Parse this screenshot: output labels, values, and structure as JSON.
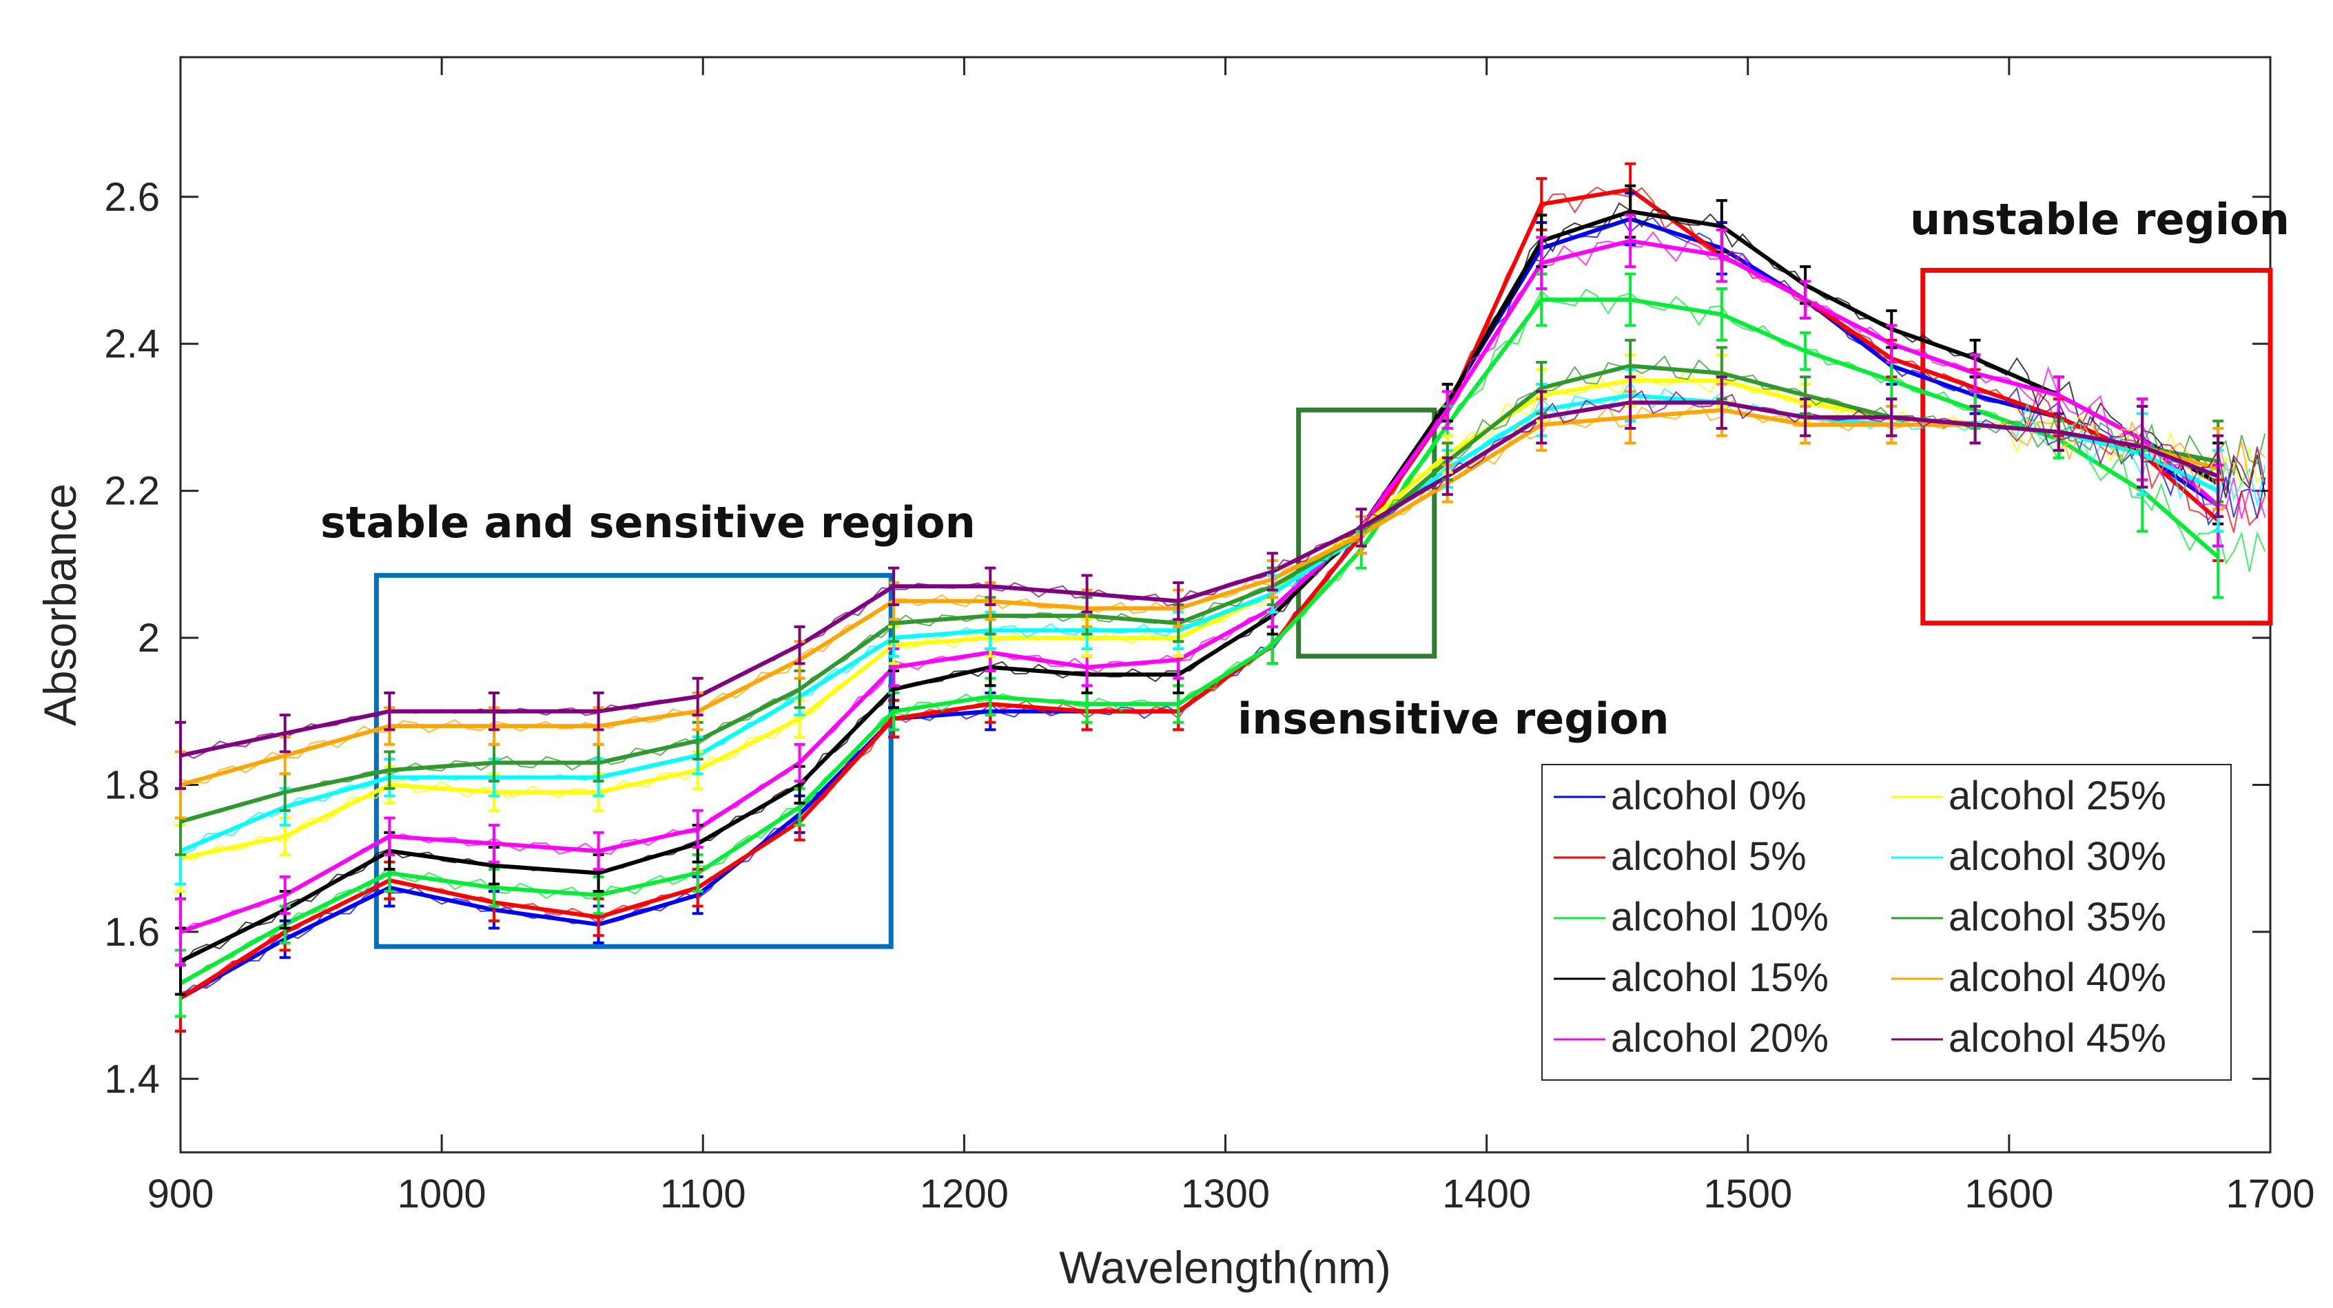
{
  "chart_data": {
    "type": "line",
    "title": "",
    "xlabel": "Wavelength(nm)",
    "ylabel": "Absorbance",
    "xlim": [
      900,
      1700
    ],
    "ylim": [
      1.3,
      2.79
    ],
    "xticks": [
      900,
      1000,
      1100,
      1200,
      1300,
      1400,
      1500,
      1600,
      1700
    ],
    "xtick_labels": [
      "900",
      "1000",
      "1100",
      "1200",
      "1300",
      "1400",
      "1500",
      "1600",
      "1700"
    ],
    "yticks": [
      1.4,
      1.6,
      1.8,
      2.0,
      2.2,
      2.4,
      2.6
    ],
    "ytick_labels": [
      "1.4",
      "1.6",
      "1.8",
      "2",
      "2.2",
      "2.4",
      "2.6"
    ],
    "grid": false,
    "legend_position": "bottom-right",
    "x": [
      900,
      940,
      980,
      1020,
      1060,
      1098,
      1137,
      1173,
      1210,
      1247,
      1282,
      1318,
      1352,
      1385,
      1421,
      1455,
      1490,
      1522,
      1555,
      1587,
      1619,
      1651,
      1680
    ],
    "series": [
      {
        "name": "alcohol 0%",
        "color": "#0000ff",
        "values": [
          1.51,
          1.59,
          1.66,
          1.63,
          1.61,
          1.65,
          1.76,
          1.89,
          1.9,
          1.9,
          1.9,
          1.99,
          2.14,
          2.32,
          2.53,
          2.57,
          2.53,
          2.46,
          2.37,
          2.33,
          2.3,
          2.25,
          2.18
        ]
      },
      {
        "name": "alcohol 5%",
        "color": "#ff0000",
        "values": [
          1.51,
          1.6,
          1.67,
          1.64,
          1.62,
          1.66,
          1.75,
          1.89,
          1.91,
          1.9,
          1.9,
          1.99,
          2.14,
          2.31,
          2.59,
          2.61,
          2.52,
          2.46,
          2.38,
          2.34,
          2.3,
          2.25,
          2.16
        ]
      },
      {
        "name": "alcohol 10%",
        "color": "#00ee33",
        "values": [
          1.53,
          1.61,
          1.68,
          1.66,
          1.65,
          1.68,
          1.77,
          1.9,
          1.92,
          1.91,
          1.91,
          1.99,
          2.12,
          2.29,
          2.46,
          2.46,
          2.44,
          2.39,
          2.35,
          2.31,
          2.27,
          2.2,
          2.11
        ]
      },
      {
        "name": "alcohol 15%",
        "color": "#000000",
        "values": [
          1.56,
          1.63,
          1.71,
          1.69,
          1.68,
          1.72,
          1.8,
          1.93,
          1.96,
          1.95,
          1.95,
          2.03,
          2.15,
          2.32,
          2.54,
          2.58,
          2.56,
          2.48,
          2.42,
          2.38,
          2.33,
          2.27,
          2.21
        ]
      },
      {
        "name": "alcohol 20%",
        "color": "#ff00ff",
        "values": [
          1.6,
          1.65,
          1.73,
          1.72,
          1.71,
          1.74,
          1.83,
          1.96,
          1.98,
          1.96,
          1.97,
          2.04,
          2.15,
          2.31,
          2.51,
          2.54,
          2.52,
          2.46,
          2.4,
          2.36,
          2.33,
          2.27,
          2.18
        ]
      },
      {
        "name": "alcohol 25%",
        "color": "#ffff00",
        "values": [
          1.7,
          1.73,
          1.8,
          1.79,
          1.79,
          1.82,
          1.89,
          1.99,
          2.0,
          2.0,
          2.0,
          2.06,
          2.15,
          2.25,
          2.33,
          2.35,
          2.35,
          2.32,
          2.3,
          2.29,
          2.28,
          2.26,
          2.22
        ]
      },
      {
        "name": "alcohol 30%",
        "color": "#00ffff",
        "values": [
          1.71,
          1.77,
          1.81,
          1.81,
          1.81,
          1.84,
          1.92,
          2.0,
          2.01,
          2.01,
          2.01,
          2.06,
          2.14,
          2.23,
          2.31,
          2.33,
          2.32,
          2.3,
          2.29,
          2.29,
          2.28,
          2.25,
          2.2
        ]
      },
      {
        "name": "alcohol 35%",
        "color": "#2e9a2e",
        "values": [
          1.75,
          1.79,
          1.82,
          1.83,
          1.83,
          1.86,
          1.93,
          2.02,
          2.03,
          2.03,
          2.02,
          2.07,
          2.14,
          2.24,
          2.34,
          2.37,
          2.36,
          2.33,
          2.3,
          2.29,
          2.28,
          2.26,
          2.24
        ]
      },
      {
        "name": "alcohol 40%",
        "color": "#ffa500",
        "values": [
          1.8,
          1.84,
          1.88,
          1.88,
          1.88,
          1.9,
          1.97,
          2.05,
          2.05,
          2.04,
          2.04,
          2.08,
          2.14,
          2.21,
          2.29,
          2.3,
          2.31,
          2.29,
          2.29,
          2.29,
          2.28,
          2.26,
          2.23
        ]
      },
      {
        "name": "alcohol 45%",
        "color": "#800080",
        "values": [
          1.84,
          1.87,
          1.9,
          1.9,
          1.9,
          1.92,
          1.99,
          2.07,
          2.07,
          2.06,
          2.05,
          2.09,
          2.15,
          2.22,
          2.3,
          2.32,
          2.32,
          2.3,
          2.3,
          2.29,
          2.28,
          2.26,
          2.22
        ]
      }
    ],
    "error_bar_halfwidth": 0.025,
    "annotations": [
      {
        "text": "stable and sensitive region",
        "color": "#0070c0",
        "x_range": [
          975,
          1172
        ],
        "y_range": [
          1.58,
          2.085
        ]
      },
      {
        "text": "insensitive region",
        "color": "#2e7d32",
        "x_range": [
          1328,
          1380
        ],
        "y_range": [
          1.975,
          2.31
        ]
      },
      {
        "text": "unstable region",
        "color": "#ff0000",
        "x_range": [
          1567,
          1700
        ],
        "y_range": [
          2.02,
          2.5
        ]
      }
    ]
  }
}
